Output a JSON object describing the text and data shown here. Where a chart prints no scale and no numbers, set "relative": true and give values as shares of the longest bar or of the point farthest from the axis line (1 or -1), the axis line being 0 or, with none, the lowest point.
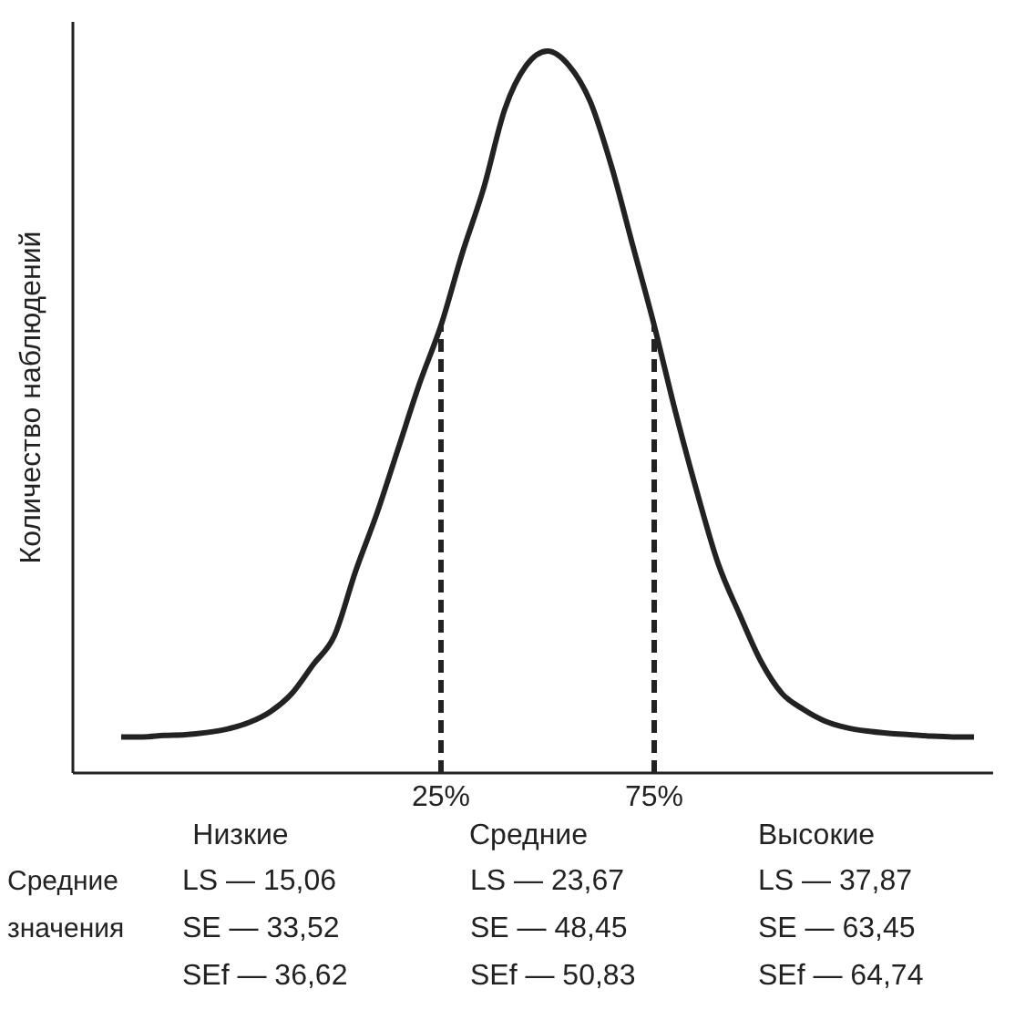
{
  "chart_data": {
    "type": "line",
    "relative": true,
    "ylabel": "Количество наблюдений",
    "categories": [
      null,
      null,
      null,
      null,
      null,
      null,
      null,
      null,
      null,
      null,
      null,
      null,
      null,
      null,
      null,
      "25%",
      null,
      null,
      null,
      null,
      null,
      null,
      null,
      null,
      null,
      "75%",
      null,
      null,
      null,
      null,
      null,
      null,
      null,
      null,
      null,
      null,
      null,
      null,
      null,
      null,
      null
    ],
    "series": [
      {
        "color": "#222222",
        "values": [
          0.05,
          0.05,
          0.052,
          0.053,
          0.056,
          0.061,
          0.07,
          0.085,
          0.11,
          0.15,
          0.19,
          0.28,
          0.36,
          0.45,
          0.54,
          0.62,
          0.72,
          0.81,
          0.92,
          0.98,
          1,
          0.98,
          0.93,
          0.84,
          0.73,
          0.62,
          0.5,
          0.39,
          0.29,
          0.22,
          0.155,
          0.11,
          0.088,
          0.072,
          0.063,
          0.058,
          0.055,
          0.053,
          0.051,
          0.05,
          0.05
        ]
      }
    ],
    "ref_lines": [
      {
        "axis": "x",
        "value": "25%",
        "color": "#222222",
        "line_style": "dashed"
      },
      {
        "axis": "x",
        "value": "75%",
        "color": "#222222",
        "line_style": "dashed"
      }
    ],
    "annotations": [
      "Средние значения",
      "Низкие",
      "Средние",
      "Высокие",
      "LS — 15,06",
      "LS — 23,67",
      "LS — 37,87",
      "SE — 33,52",
      "SE — 48,45",
      "SE — 63,45",
      "SEf — 36,62",
      "SEf — 50,83",
      "SEf — 64,74"
    ]
  }
}
